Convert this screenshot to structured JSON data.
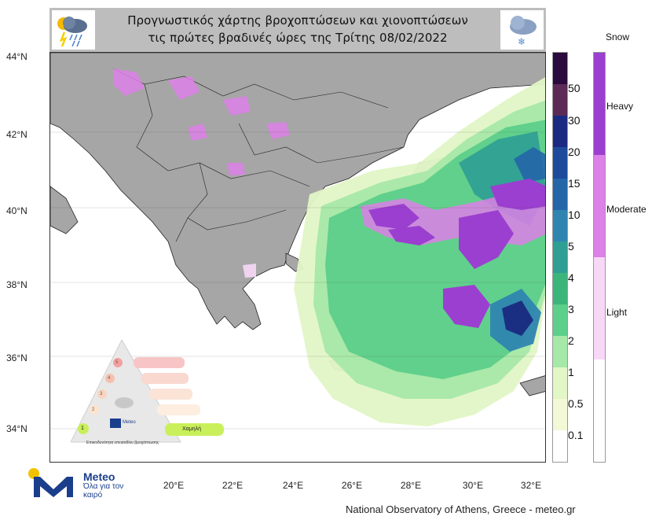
{
  "header": {
    "title_line1": "Προγνωστικός χάρτης βροχοπτώσεων και χιονοπτώσεων",
    "title_line2": "τις πρώτες βραδινές ώρες της Τρίτης 08/02/2022",
    "left_icon": "rain-storm-cloud-icon",
    "right_icon": "snow-cloud-icon"
  },
  "map": {
    "lat_labels": [
      "44°N",
      "42°N",
      "40°N",
      "38°N",
      "36°N",
      "34°N"
    ],
    "lon_labels": [
      "20°E",
      "22°E",
      "24°E",
      "26°E",
      "28°E",
      "30°E",
      "32°E"
    ]
  },
  "rain_scale": {
    "ticks": [
      "50",
      "30",
      "20",
      "15",
      "10",
      "5",
      "4",
      "3",
      "2",
      "1",
      "0.5",
      "0.1"
    ],
    "colors": [
      "#2b0a3d",
      "#5c2a55",
      "#1a2a80",
      "#1e4a9c",
      "#2466a8",
      "#2f85b0",
      "#2f9f93",
      "#3cb57a",
      "#5ccf8a",
      "#a6e8a8",
      "#e2f6c6",
      "#f3f8d6",
      "#ffffff"
    ]
  },
  "snow_scale": {
    "title": "Snow",
    "labels": [
      "Heavy",
      "Moderate",
      "Light"
    ],
    "colors": [
      "#9b3fd0",
      "#dd80e8",
      "#f7d8f7"
    ]
  },
  "legend_pyramid": {
    "levels": [
      "1",
      "2",
      "3",
      "4",
      "5"
    ],
    "low_label": "Χαμηλή",
    "footer": "Επικινδυνότητα επεισοδίου βροχόπτωσης",
    "mini_logo_word": "Meteo"
  },
  "logo": {
    "word": "Meteo",
    "tagline": "Όλα για τον καιρό"
  },
  "credit": "National Observatory of Athens, Greece - meteo.gr",
  "colors": {
    "land": "#a6a6a6",
    "sea": "#ffffff",
    "header_bg": "#bdbdbd",
    "brand_blue": "#1a3e8c",
    "brand_yellow": "#f2c200"
  }
}
